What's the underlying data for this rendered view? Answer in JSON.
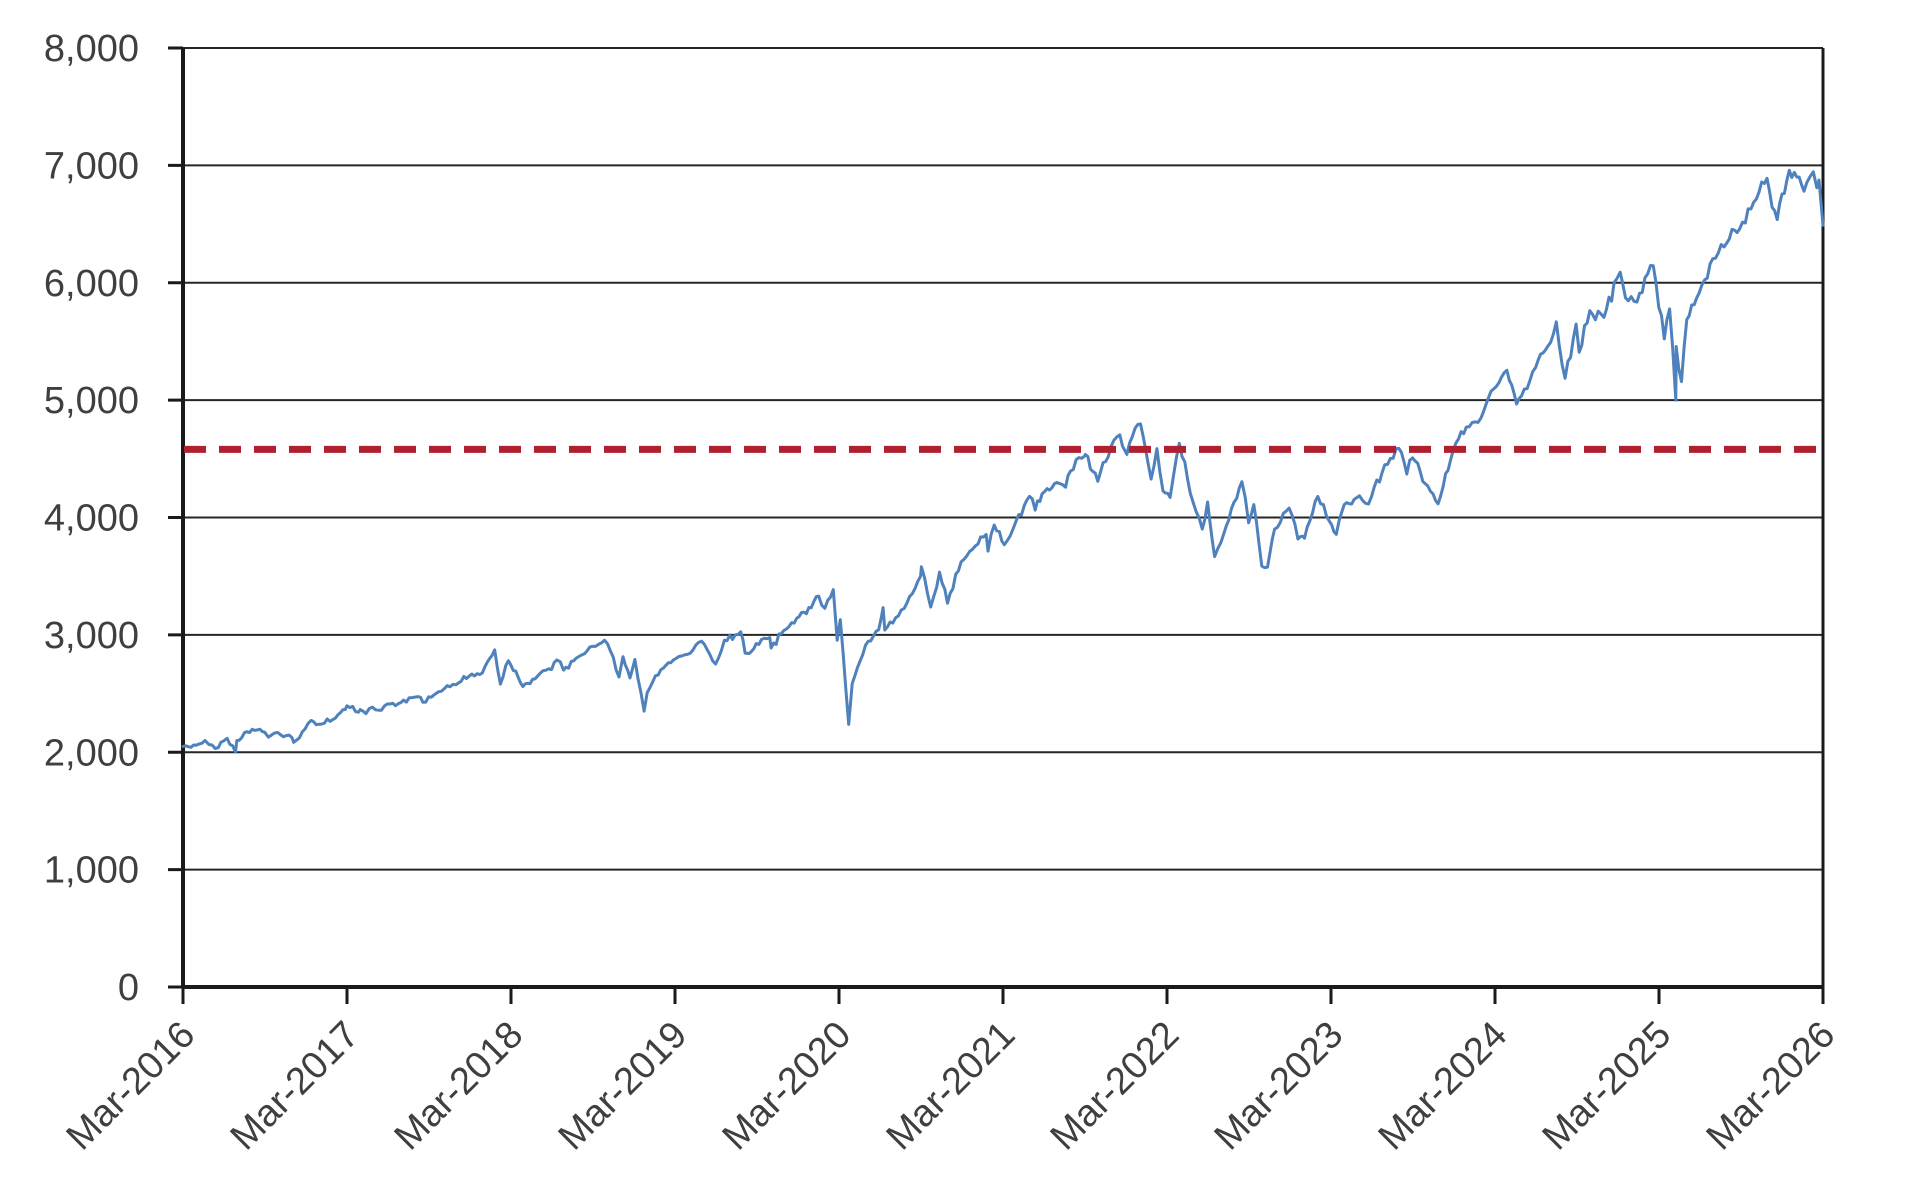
{
  "chart_data": {
    "type": "line",
    "title": "",
    "grid": "horizontal",
    "legend": "none",
    "x_axis": {
      "tick_labels": [
        "Mar-2016",
        "Mar-2017",
        "Mar-2018",
        "Mar-2019",
        "Mar-2020",
        "Mar-2021",
        "Mar-2022",
        "Mar-2023",
        "Mar-2024",
        "Mar-2025",
        "Mar-2026"
      ],
      "label_rotation_deg": -45
    },
    "y_axis": {
      "ticks": [
        0,
        1000,
        2000,
        3000,
        4000,
        5000,
        6000,
        7000,
        8000
      ],
      "tick_labels": [
        "0",
        "1,000",
        "2,000",
        "3,000",
        "4,000",
        "5,000",
        "6,000",
        "7,000",
        "8,000"
      ],
      "range": [
        0,
        8000
      ]
    },
    "reference_line": {
      "value": 4580,
      "style": "dashed",
      "color": "#b02030"
    },
    "style": {
      "line_color": "#4f81bd",
      "line_width": 3,
      "reference_color": "#b02030",
      "reference_width": 7,
      "reference_dash": "22 13",
      "grid_color": "#262626",
      "axis_color": "#1a1a1a",
      "label_color": "#3f3f3f",
      "label_font_size": 38,
      "background": "#ffffff",
      "noise_pct": 0.011,
      "noise_seed": 9
    },
    "series": [
      {
        "name": "index-level",
        "points": [
          [
            "2016-03-01",
            2050
          ],
          [
            "2016-03-31",
            2060
          ],
          [
            "2016-04-20",
            2100
          ],
          [
            "2016-04-29",
            2065
          ],
          [
            "2016-05-19",
            2040
          ],
          [
            "2016-05-31",
            2097
          ],
          [
            "2016-06-08",
            2119
          ],
          [
            "2016-06-27",
            2001
          ],
          [
            "2016-06-30",
            2099
          ],
          [
            "2016-07-22",
            2175
          ],
          [
            "2016-08-15",
            2190
          ],
          [
            "2016-08-31",
            2171
          ],
          [
            "2016-09-09",
            2128
          ],
          [
            "2016-09-22",
            2163
          ],
          [
            "2016-09-30",
            2168
          ],
          [
            "2016-10-31",
            2126
          ],
          [
            "2016-11-04",
            2085
          ],
          [
            "2016-11-30",
            2199
          ],
          [
            "2016-12-13",
            2271
          ],
          [
            "2016-12-30",
            2239
          ],
          [
            "2017-01-31",
            2279
          ],
          [
            "2017-02-28",
            2364
          ],
          [
            "2017-03-01",
            2396
          ],
          [
            "2017-03-27",
            2341
          ],
          [
            "2017-03-31",
            2363
          ],
          [
            "2017-04-13",
            2329
          ],
          [
            "2017-04-28",
            2384
          ],
          [
            "2017-05-17",
            2357
          ],
          [
            "2017-05-31",
            2412
          ],
          [
            "2017-06-30",
            2423
          ],
          [
            "2017-07-31",
            2470
          ],
          [
            "2017-08-08",
            2474
          ],
          [
            "2017-08-18",
            2426
          ],
          [
            "2017-08-31",
            2472
          ],
          [
            "2017-09-29",
            2519
          ],
          [
            "2017-10-31",
            2575
          ],
          [
            "2017-11-30",
            2648
          ],
          [
            "2017-12-29",
            2674
          ],
          [
            "2018-01-26",
            2873
          ],
          [
            "2018-02-08",
            2581
          ],
          [
            "2018-02-26",
            2780
          ],
          [
            "2018-03-23",
            2588
          ],
          [
            "2018-04-02",
            2582
          ],
          [
            "2018-04-30",
            2648
          ],
          [
            "2018-05-31",
            2705
          ],
          [
            "2018-06-12",
            2787
          ],
          [
            "2018-06-27",
            2700
          ],
          [
            "2018-07-31",
            2816
          ],
          [
            "2018-08-31",
            2902
          ],
          [
            "2018-09-20",
            2931
          ],
          [
            "2018-10-03",
            2925
          ],
          [
            "2018-10-29",
            2641
          ],
          [
            "2018-11-07",
            2814
          ],
          [
            "2018-11-23",
            2633
          ],
          [
            "2018-12-03",
            2790
          ],
          [
            "2018-12-24",
            2351
          ],
          [
            "2018-12-31",
            2507
          ],
          [
            "2019-01-31",
            2704
          ],
          [
            "2019-02-28",
            2784
          ],
          [
            "2019-03-29",
            2834
          ],
          [
            "2019-04-30",
            2946
          ],
          [
            "2019-05-31",
            2752
          ],
          [
            "2019-06-20",
            2954
          ],
          [
            "2019-07-26",
            3026
          ],
          [
            "2019-08-05",
            2845
          ],
          [
            "2019-08-14",
            2841
          ],
          [
            "2019-08-30",
            2926
          ],
          [
            "2019-09-30",
            2977
          ],
          [
            "2019-10-02",
            2888
          ],
          [
            "2019-10-31",
            3038
          ],
          [
            "2019-11-29",
            3141
          ],
          [
            "2019-12-31",
            3231
          ],
          [
            "2020-01-17",
            3330
          ],
          [
            "2020-01-31",
            3226
          ],
          [
            "2020-02-19",
            3386
          ],
          [
            "2020-02-28",
            2954
          ],
          [
            "2020-03-04",
            3130
          ],
          [
            "2020-03-23",
            2237
          ],
          [
            "2020-03-31",
            2585
          ],
          [
            "2020-04-30",
            2912
          ],
          [
            "2020-05-29",
            3044
          ],
          [
            "2020-06-08",
            3232
          ],
          [
            "2020-06-12",
            3041
          ],
          [
            "2020-06-30",
            3100
          ],
          [
            "2020-07-31",
            3271
          ],
          [
            "2020-08-31",
            3500
          ],
          [
            "2020-09-02",
            3580
          ],
          [
            "2020-09-23",
            3237
          ],
          [
            "2020-10-12",
            3534
          ],
          [
            "2020-10-30",
            3270
          ],
          [
            "2020-11-30",
            3622
          ],
          [
            "2020-12-31",
            3756
          ],
          [
            "2021-01-25",
            3855
          ],
          [
            "2021-01-29",
            3714
          ],
          [
            "2021-02-12",
            3935
          ],
          [
            "2021-03-04",
            3768
          ],
          [
            "2021-03-31",
            3973
          ],
          [
            "2021-04-30",
            4181
          ],
          [
            "2021-05-12",
            4063
          ],
          [
            "2021-05-28",
            4204
          ],
          [
            "2021-06-30",
            4298
          ],
          [
            "2021-07-19",
            4258
          ],
          [
            "2021-07-30",
            4395
          ],
          [
            "2021-08-31",
            4523
          ],
          [
            "2021-09-02",
            4537
          ],
          [
            "2021-09-30",
            4308
          ],
          [
            "2021-10-29",
            4605
          ],
          [
            "2021-11-18",
            4705
          ],
          [
            "2021-11-30",
            4567
          ],
          [
            "2021-12-03",
            4538
          ],
          [
            "2021-12-28",
            4793
          ],
          [
            "2022-01-03",
            4797
          ],
          [
            "2022-01-27",
            4327
          ],
          [
            "2022-02-09",
            4587
          ],
          [
            "2022-02-23",
            4226
          ],
          [
            "2022-03-08",
            4171
          ],
          [
            "2022-03-29",
            4632
          ],
          [
            "2022-04-29",
            4132
          ],
          [
            "2022-05-19",
            3901
          ],
          [
            "2022-05-31",
            4132
          ],
          [
            "2022-06-16",
            3667
          ],
          [
            "2022-06-30",
            3785
          ],
          [
            "2022-07-29",
            4130
          ],
          [
            "2022-08-16",
            4305
          ],
          [
            "2022-08-31",
            3955
          ],
          [
            "2022-09-12",
            4110
          ],
          [
            "2022-09-30",
            3586
          ],
          [
            "2022-10-12",
            3577
          ],
          [
            "2022-10-28",
            3901
          ],
          [
            "2022-11-30",
            4080
          ],
          [
            "2022-12-19",
            3817
          ],
          [
            "2022-12-30",
            3840
          ],
          [
            "2023-01-03",
            3824
          ],
          [
            "2023-02-02",
            4180
          ],
          [
            "2023-02-28",
            3970
          ],
          [
            "2023-03-13",
            3856
          ],
          [
            "2023-03-31",
            4109
          ],
          [
            "2023-04-28",
            4169
          ],
          [
            "2023-05-24",
            4115
          ],
          [
            "2023-05-31",
            4180
          ],
          [
            "2023-06-30",
            4450
          ],
          [
            "2023-07-31",
            4589
          ],
          [
            "2023-08-18",
            4370
          ],
          [
            "2023-08-31",
            4508
          ],
          [
            "2023-09-29",
            4288
          ],
          [
            "2023-10-27",
            4117
          ],
          [
            "2023-11-30",
            4568
          ],
          [
            "2023-12-29",
            4770
          ],
          [
            "2024-01-31",
            4846
          ],
          [
            "2024-02-29",
            5096
          ],
          [
            "2024-03-28",
            5254
          ],
          [
            "2024-04-19",
            4967
          ],
          [
            "2024-04-30",
            5036
          ],
          [
            "2024-05-31",
            5278
          ],
          [
            "2024-06-28",
            5460
          ],
          [
            "2024-07-16",
            5667
          ],
          [
            "2024-08-05",
            5186
          ],
          [
            "2024-08-30",
            5648
          ],
          [
            "2024-09-06",
            5408
          ],
          [
            "2024-09-30",
            5762
          ],
          [
            "2024-10-31",
            5705
          ],
          [
            "2024-11-29",
            6032
          ],
          [
            "2024-12-06",
            6090
          ],
          [
            "2024-12-18",
            5872
          ],
          [
            "2024-12-31",
            5882
          ],
          [
            "2025-01-13",
            5836
          ],
          [
            "2025-01-31",
            6041
          ],
          [
            "2025-02-19",
            6144
          ],
          [
            "2025-03-13",
            5522
          ],
          [
            "2025-03-25",
            5777
          ],
          [
            "2025-04-08",
            5000
          ],
          [
            "2025-04-09",
            5457
          ],
          [
            "2025-04-21",
            5158
          ],
          [
            "2025-05-02",
            5687
          ],
          [
            "2025-05-30",
            5912
          ],
          [
            "2025-06-30",
            6205
          ],
          [
            "2025-07-31",
            6340
          ],
          [
            "2025-08-29",
            6460
          ],
          [
            "2025-09-30",
            6688
          ],
          [
            "2025-10-29",
            6890
          ],
          [
            "2025-11-21",
            6538
          ],
          [
            "2025-12-12",
            6870
          ],
          [
            "2025-12-29",
            6940
          ],
          [
            "2026-01-09",
            6900
          ],
          [
            "2026-01-20",
            6780
          ],
          [
            "2026-02-02",
            6900
          ],
          [
            "2026-02-10",
            6945
          ],
          [
            "2026-02-18",
            6810
          ],
          [
            "2026-02-23",
            6875
          ],
          [
            "2026-03-01",
            6490
          ]
        ]
      }
    ]
  }
}
